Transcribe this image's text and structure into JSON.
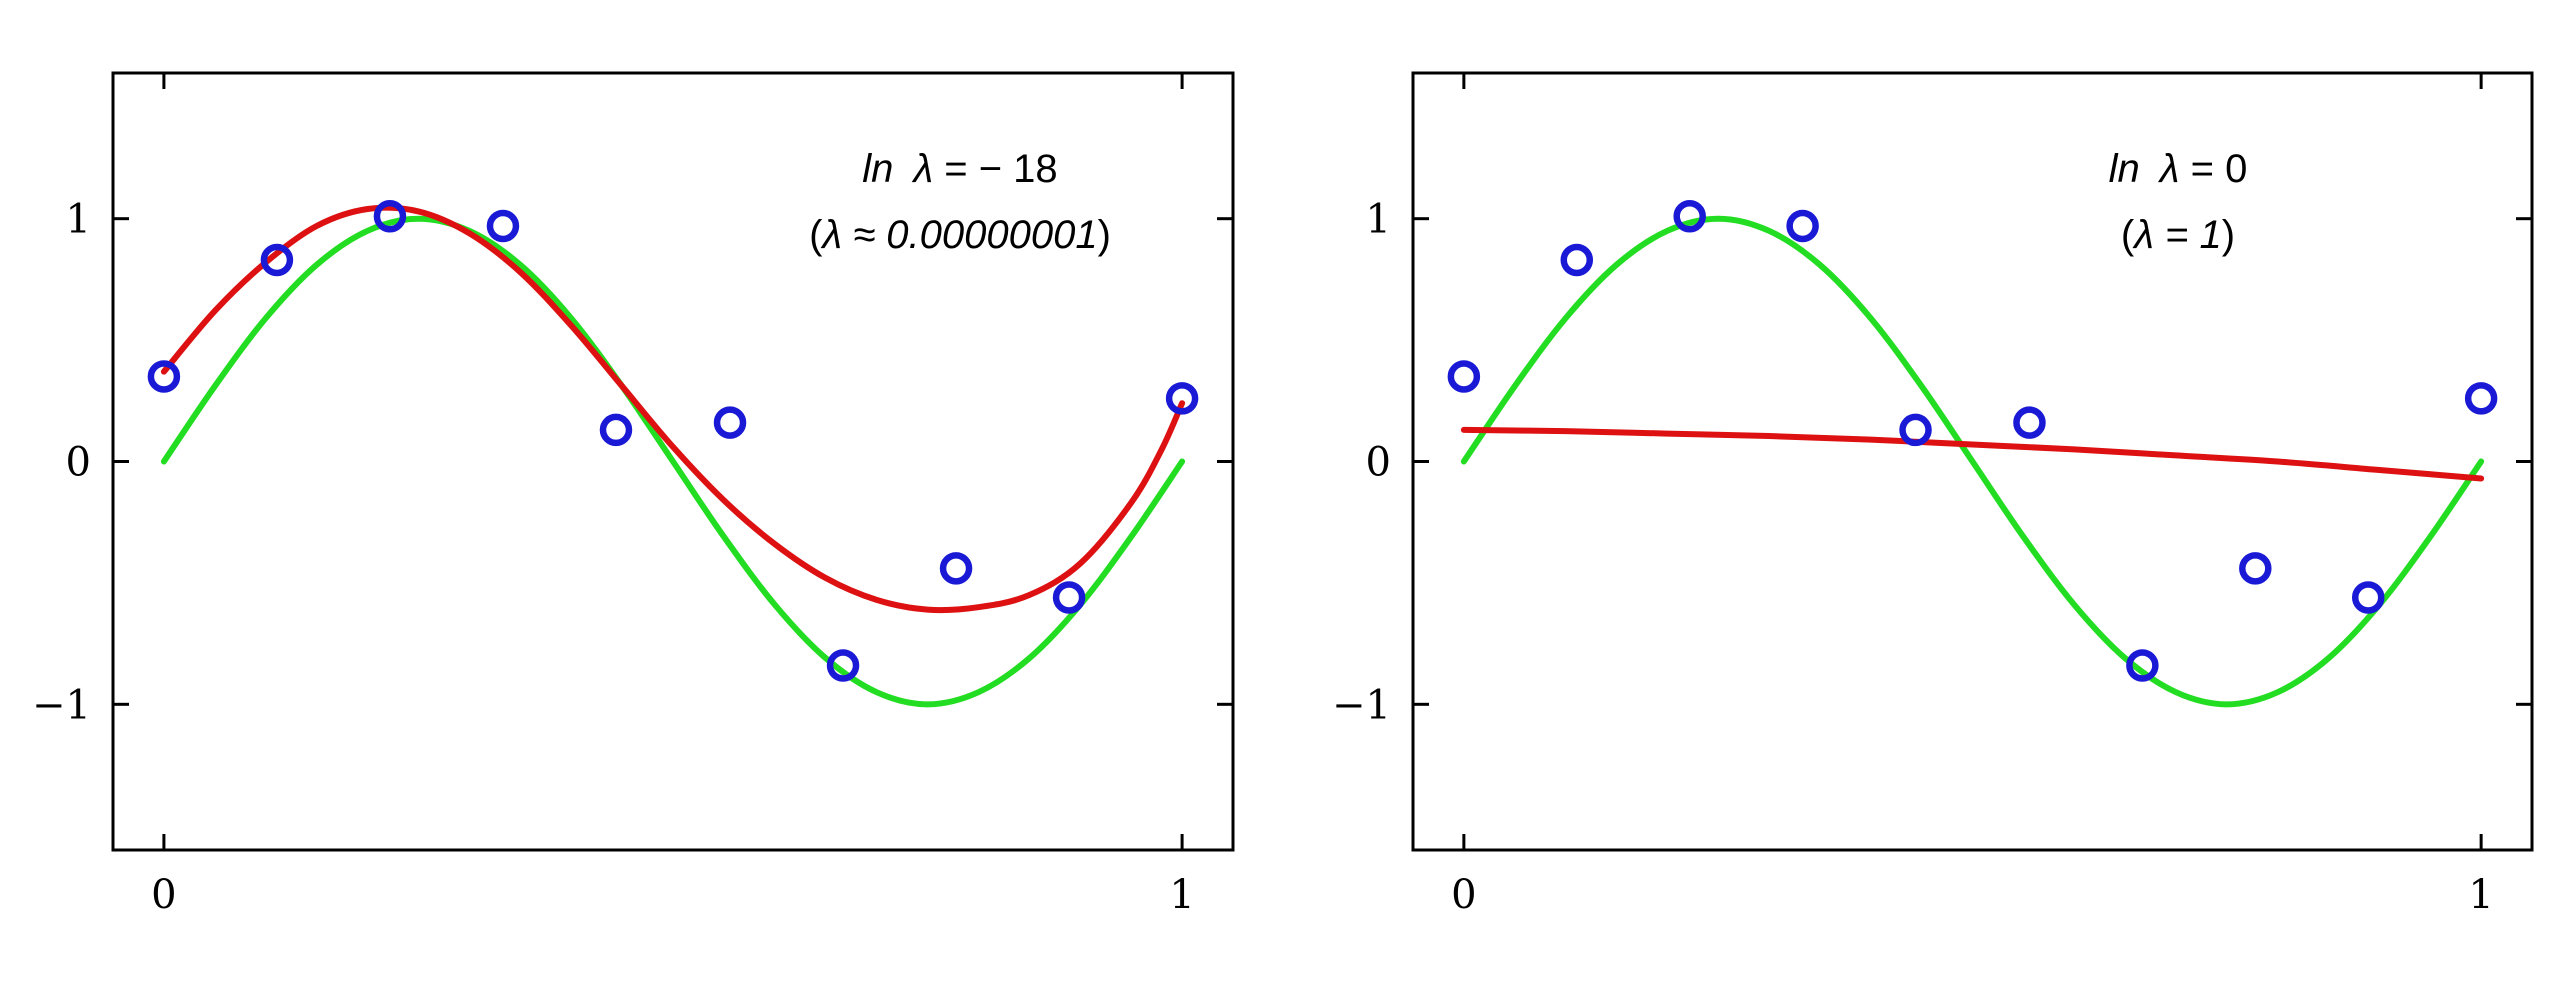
{
  "chart_data": [
    {
      "type": "line",
      "title": "",
      "xlabel": "",
      "ylabel": "",
      "xlim": [
        -0.05,
        1.05
      ],
      "ylim": [
        -1.6,
        1.6
      ],
      "grid": false,
      "xticks": [
        0,
        1
      ],
      "xtick_labels": [
        "0",
        "1"
      ],
      "yticks": [
        -1,
        0,
        1
      ],
      "ytick_labels": [
        "−1",
        "0",
        "1"
      ],
      "annotation": {
        "line1_italic_a": "ln",
        "line1_italic_b": "λ",
        "line1_rest": " = − 18",
        "line2_open": "(",
        "line2_italic": "λ ≈ 0.00000001",
        "line2_close": ")"
      },
      "points": {
        "color": "#1a1ad6",
        "x": [
          0.0,
          0.111,
          0.222,
          0.333,
          0.444,
          0.556,
          0.667,
          0.778,
          0.889,
          1.0
        ],
        "y": [
          0.35,
          0.83,
          1.01,
          0.97,
          0.13,
          0.16,
          -0.84,
          -0.44,
          -0.56,
          0.26
        ]
      },
      "series": [
        {
          "color": "#22dd22",
          "x": [
            0,
            0.05,
            0.1,
            0.15,
            0.2,
            0.25,
            0.3,
            0.35,
            0.4,
            0.45,
            0.5,
            0.55,
            0.6,
            0.65,
            0.7,
            0.75,
            0.8,
            0.85,
            0.9,
            0.95,
            1.0
          ],
          "y": [
            0,
            0.31,
            0.59,
            0.81,
            0.95,
            1.0,
            0.95,
            0.81,
            0.59,
            0.31,
            0,
            -0.31,
            -0.59,
            -0.81,
            -0.95,
            -1.0,
            -0.95,
            -0.81,
            -0.59,
            -0.31,
            0
          ]
        },
        {
          "color": "#dd1111",
          "x": [
            0,
            0.05,
            0.1,
            0.15,
            0.2,
            0.25,
            0.3,
            0.35,
            0.4,
            0.45,
            0.5,
            0.55,
            0.6,
            0.65,
            0.7,
            0.75,
            0.8,
            0.85,
            0.9,
            0.95,
            0.98,
            1.0
          ],
          "y": [
            0.37,
            0.62,
            0.82,
            0.97,
            1.04,
            1.03,
            0.94,
            0.78,
            0.56,
            0.31,
            0.06,
            -0.16,
            -0.34,
            -0.48,
            -0.57,
            -0.61,
            -0.6,
            -0.55,
            -0.42,
            -0.17,
            0.05,
            0.24
          ]
        }
      ]
    },
    {
      "type": "line",
      "title": "",
      "xlabel": "",
      "ylabel": "",
      "xlim": [
        -0.05,
        1.05
      ],
      "ylim": [
        -1.6,
        1.6
      ],
      "grid": false,
      "xticks": [
        0,
        1
      ],
      "xtick_labels": [
        "0",
        "1"
      ],
      "yticks": [
        -1,
        0,
        1
      ],
      "ytick_labels": [
        "−1",
        "0",
        "1"
      ],
      "annotation": {
        "line1_italic_a": "ln",
        "line1_italic_b": "λ",
        "line1_rest": " = 0",
        "line2_open": "(",
        "line2_italic": "λ = 1",
        "line2_close": ")"
      },
      "points": {
        "color": "#1a1ad6",
        "x": [
          0.0,
          0.111,
          0.222,
          0.333,
          0.444,
          0.556,
          0.667,
          0.778,
          0.889,
          1.0
        ],
        "y": [
          0.35,
          0.83,
          1.01,
          0.97,
          0.13,
          0.16,
          -0.84,
          -0.44,
          -0.56,
          0.26
        ]
      },
      "series": [
        {
          "color": "#22dd22",
          "x": [
            0,
            0.05,
            0.1,
            0.15,
            0.2,
            0.25,
            0.3,
            0.35,
            0.4,
            0.45,
            0.5,
            0.55,
            0.6,
            0.65,
            0.7,
            0.75,
            0.8,
            0.85,
            0.9,
            0.95,
            1.0
          ],
          "y": [
            0,
            0.31,
            0.59,
            0.81,
            0.95,
            1.0,
            0.95,
            0.81,
            0.59,
            0.31,
            0,
            -0.31,
            -0.59,
            -0.81,
            -0.95,
            -1.0,
            -0.95,
            -0.81,
            -0.59,
            -0.31,
            0
          ]
        },
        {
          "color": "#dd1111",
          "x": [
            0,
            0.1,
            0.2,
            0.3,
            0.4,
            0.5,
            0.6,
            0.7,
            0.8,
            0.9,
            1.0
          ],
          "y": [
            0.13,
            0.125,
            0.115,
            0.105,
            0.09,
            0.07,
            0.05,
            0.025,
            0.0,
            -0.035,
            -0.07
          ]
        }
      ]
    }
  ]
}
